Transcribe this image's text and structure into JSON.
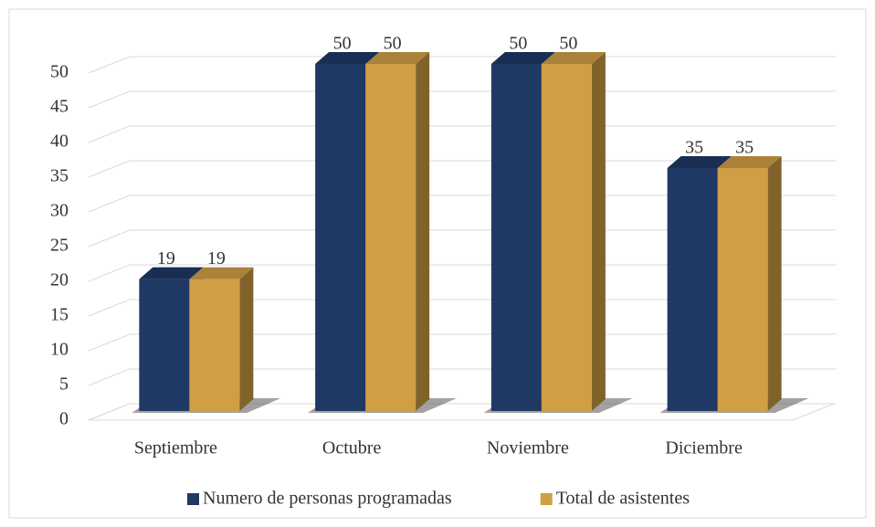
{
  "chart_data": {
    "type": "bar",
    "categories": [
      "Septiembre",
      "Octubre",
      "Noviembre",
      "Diciembre"
    ],
    "series": [
      {
        "name": "Numero de personas programadas",
        "color": "#1f3864",
        "values": [
          19,
          50,
          50,
          35
        ]
      },
      {
        "name": "Total de asistentes",
        "color": "#d09e45",
        "values": [
          19,
          50,
          50,
          35
        ]
      }
    ],
    "ylim": [
      0,
      50
    ],
    "yticks": [
      0,
      5,
      10,
      15,
      20,
      25,
      30,
      35,
      40,
      45,
      50
    ],
    "grid": true,
    "legend": "bottom",
    "three_d": true
  }
}
